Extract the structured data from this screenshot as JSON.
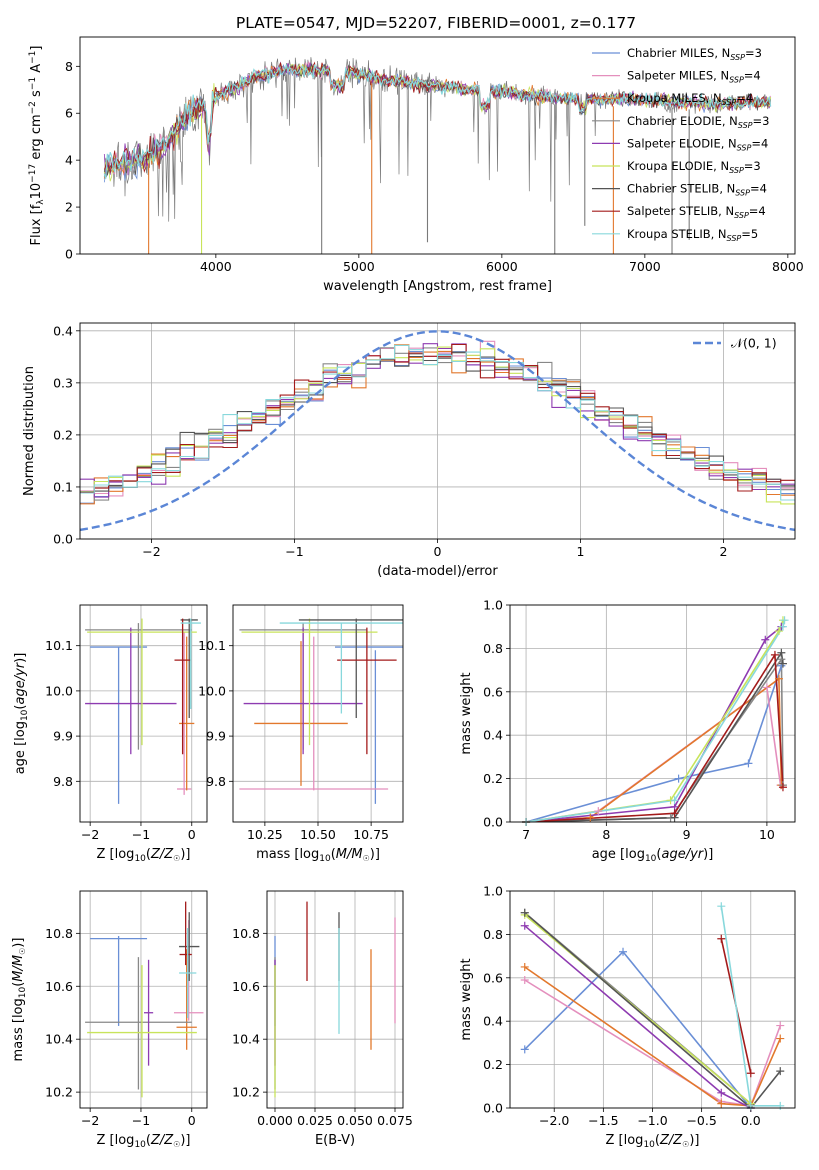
{
  "figure_title": "PLATE=0547, MJD=52207, FIBERID=0001, z=0.177",
  "colors": {
    "chabrier_miles": "#6a8fd6",
    "salpeter_miles": "#e48fbd",
    "kroupa_miles": "#e2782d",
    "chabrier_elodie": "#888888",
    "salpeter_elodie": "#8e3bb1",
    "kroupa_elodie": "#c8e45b",
    "chabrier_stelib": "#555555",
    "salpeter_stelib": "#a31b1b",
    "kroupa_stelib": "#88d8dc",
    "normal_curve": "#5b86d6"
  },
  "legend_models": [
    {
      "key": "chabrier_miles",
      "name": "Chabrier MILES",
      "nssp": "3"
    },
    {
      "key": "salpeter_miles",
      "name": "Salpeter MILES",
      "nssp": "4"
    },
    {
      "key": "kroupa_miles",
      "name": "Kroupa MILES",
      "nssp": "4"
    },
    {
      "key": "chabrier_elodie",
      "name": "Chabrier ELODIE",
      "nssp": "3"
    },
    {
      "key": "salpeter_elodie",
      "name": "Salpeter ELODIE",
      "nssp": "4"
    },
    {
      "key": "kroupa_elodie",
      "name": "Kroupa ELODIE",
      "nssp": "3"
    },
    {
      "key": "chabrier_stelib",
      "name": "Chabrier STELIB",
      "nssp": "4"
    },
    {
      "key": "salpeter_stelib",
      "name": "Salpeter STELIB",
      "nssp": "4"
    },
    {
      "key": "kroupa_stelib",
      "name": "Kroupa STELIB",
      "nssp": "5"
    }
  ],
  "chart_data": [
    {
      "id": "spectrum",
      "type": "line",
      "xlabel": "wavelength [Angstrom, rest frame]",
      "ylabel": "Flux [f_λ 10^-17 erg cm^-2 s^-1 A^-1]",
      "xlim": [
        3050,
        8050
      ],
      "ylim": [
        0,
        9.25
      ],
      "xticks": [
        4000,
        5000,
        6000,
        7000,
        8000
      ],
      "yticks": [
        0,
        2,
        4,
        6,
        8
      ],
      "grid": false,
      "legend_position": "right",
      "wavelength_range": [
        3220,
        7880
      ],
      "continuum_knots": [
        [
          3220,
          3.7
        ],
        [
          3400,
          3.9
        ],
        [
          3550,
          4.2
        ],
        [
          3700,
          5.0
        ],
        [
          3800,
          5.9
        ],
        [
          3950,
          6.5
        ],
        [
          4100,
          7.0
        ],
        [
          4300,
          7.6
        ],
        [
          4500,
          7.9
        ],
        [
          4800,
          7.8
        ],
        [
          5000,
          7.7
        ],
        [
          5200,
          7.4
        ],
        [
          5500,
          7.2
        ],
        [
          5800,
          7.0
        ],
        [
          6000,
          6.9
        ],
        [
          6300,
          6.7
        ],
        [
          6600,
          6.6
        ],
        [
          6900,
          6.6
        ],
        [
          7200,
          6.5
        ],
        [
          7500,
          6.4
        ],
        [
          7880,
          6.5
        ]
      ],
      "dropouts": [
        {
          "x": 3530,
          "y": 0,
          "series": "kroupa_miles"
        },
        {
          "x": 3900,
          "y": 0,
          "series": "kroupa_elodie"
        },
        {
          "x": 4740,
          "y": 0,
          "series": "data"
        },
        {
          "x": 5090,
          "y": 0,
          "series": "kroupa_miles"
        },
        {
          "x": 5480,
          "y": 0.5,
          "series": "data"
        },
        {
          "x": 6370,
          "y": 0,
          "series": "data"
        },
        {
          "x": 6580,
          "y": 1.2,
          "series": "data"
        },
        {
          "x": 6780,
          "y": 0,
          "series": "kroupa_miles"
        },
        {
          "x": 7190,
          "y": 0,
          "series": "data"
        },
        {
          "x": 7310,
          "y": 0.6,
          "series": "data"
        }
      ]
    },
    {
      "id": "residuals",
      "type": "histogram",
      "xlabel": "(data-model)/error",
      "ylabel": "Normed distribution",
      "xlim": [
        -2.5,
        2.5
      ],
      "ylim": [
        0,
        0.415
      ],
      "xticks": [
        -2,
        -1,
        0,
        1,
        2
      ],
      "yticks": [
        0.0,
        0.1,
        0.2,
        0.3,
        0.4
      ],
      "grid": true,
      "legend_position": "top-right",
      "legend_label": "𝒩(0, 1)",
      "bin_width": 0.1,
      "curve": {
        "mu": 0,
        "sigma": 1
      }
    },
    {
      "id": "age_vs_Z",
      "type": "errorbar",
      "xlabel": "Z [log10(Z/Z☉)]",
      "ylabel": "age  [log10(age/yr)]",
      "xlim": [
        -2.2,
        0.3
      ],
      "ylim": [
        9.71,
        10.19
      ],
      "xticks": [
        -2,
        -1,
        0
      ],
      "yticks": [
        9.8,
        9.9,
        10.0,
        10.1
      ],
      "grid": true,
      "points": [
        {
          "series": "chabrier_miles",
          "x": -1.44,
          "xerr": 0.56,
          "y": 9.923,
          "yerr": 0.173,
          "y_hbar": 10.097
        },
        {
          "series": "salpeter_miles",
          "x": -0.15,
          "xerr": 0.14,
          "y": 9.95,
          "yerr": 0.18,
          "y_hbar": 9.783
        },
        {
          "series": "kroupa_miles",
          "x": -0.1,
          "xerr": 0.15,
          "y": 9.95,
          "yerr": 0.17,
          "y_hbar": 9.928
        },
        {
          "series": "chabrier_elodie",
          "x": -1.05,
          "xerr": 1.05,
          "y": 10.01,
          "yerr": 0.14,
          "y_hbar": 10.135
        },
        {
          "series": "salpeter_elodie",
          "x": -1.2,
          "xerr": 0.9,
          "y": 10.0,
          "yerr": 0.14,
          "y_hbar": 9.972
        },
        {
          "series": "kroupa_elodie",
          "x": -0.98,
          "xerr": 1.08,
          "y": 10.02,
          "yerr": 0.14,
          "y_hbar": 10.13
        },
        {
          "series": "chabrier_stelib",
          "x": -0.05,
          "xerr": 0.17,
          "y": 10.05,
          "yerr": 0.11,
          "y_hbar": 10.157
        },
        {
          "series": "salpeter_stelib",
          "x": -0.18,
          "xerr": 0.16,
          "y": 10.01,
          "yerr": 0.15,
          "y_hbar": 10.068
        },
        {
          "series": "kroupa_stelib",
          "x": -0.02,
          "xerr": 0.2,
          "y": 10.06,
          "yerr": 0.1,
          "y_hbar": 10.15
        }
      ]
    },
    {
      "id": "age_vs_mass",
      "type": "errorbar",
      "xlabel": "mass [log10(M/M☉)]",
      "ylabel": "",
      "xlim": [
        10.1,
        10.9
      ],
      "ylim": [
        9.71,
        10.19
      ],
      "xticks": [
        10.25,
        10.5,
        10.75
      ],
      "yticks": [
        9.8,
        9.9,
        10.0,
        10.1
      ],
      "grid": true,
      "points": [
        {
          "series": "chabrier_miles",
          "x": 10.77,
          "xerr": 0.19,
          "y": 9.92,
          "yerr": 0.17,
          "y_hbar": 10.097
        },
        {
          "series": "salpeter_miles",
          "x": 10.48,
          "xerr": 0.35,
          "y": 9.95,
          "yerr": 0.17,
          "y_hbar": 9.783
        },
        {
          "series": "kroupa_miles",
          "x": 10.42,
          "xerr": 0.22,
          "y": 9.95,
          "yerr": 0.16,
          "y_hbar": 9.928
        },
        {
          "series": "chabrier_elodie",
          "x": 10.43,
          "xerr": 0.3,
          "y": 10.01,
          "yerr": 0.14,
          "y_hbar": 10.135
        },
        {
          "series": "salpeter_elodie",
          "x": 10.43,
          "xerr": 0.28,
          "y": 10.0,
          "yerr": 0.14,
          "y_hbar": 9.972
        },
        {
          "series": "kroupa_elodie",
          "x": 10.46,
          "xerr": 0.32,
          "y": 10.02,
          "yerr": 0.14,
          "y_hbar": 10.13
        },
        {
          "series": "chabrier_stelib",
          "x": 10.68,
          "xerr": 0.27,
          "y": 10.05,
          "yerr": 0.11,
          "y_hbar": 10.157
        },
        {
          "series": "salpeter_stelib",
          "x": 10.73,
          "xerr": 0.14,
          "y": 10.0,
          "yerr": 0.14,
          "y_hbar": 10.068
        },
        {
          "series": "kroupa_stelib",
          "x": 10.61,
          "xerr": 0.29,
          "y": 10.05,
          "yerr": 0.1,
          "y_hbar": 10.15
        }
      ]
    },
    {
      "id": "weight_vs_age",
      "type": "line",
      "xlabel": "age  [log10(age/yr)]",
      "ylabel": "mass weight",
      "xlim": [
        6.8,
        10.35
      ],
      "ylim": [
        0,
        1
      ],
      "xticks": [
        7,
        8,
        9,
        10
      ],
      "yticks": [
        0.0,
        0.2,
        0.4,
        0.6,
        0.8,
        1.0
      ],
      "grid": true,
      "series": [
        {
          "key": "chabrier_miles",
          "x": [
            7.0,
            8.9,
            9.77,
            10.18
          ],
          "y": [
            0.0,
            0.2,
            0.27,
            0.72
          ]
        },
        {
          "key": "salpeter_miles",
          "x": [
            7.0,
            7.9,
            10.0,
            10.17
          ],
          "y": [
            0.0,
            0.05,
            0.62,
            0.17
          ]
        },
        {
          "key": "kroupa_miles",
          "x": [
            7.0,
            7.8,
            10.15,
            10.18
          ],
          "y": [
            0.0,
            0.02,
            0.66,
            0.17
          ]
        },
        {
          "key": "chabrier_elodie",
          "x": [
            7.0,
            8.8,
            10.18,
            10.2
          ],
          "y": [
            0.0,
            0.02,
            0.75,
            0.17
          ]
        },
        {
          "key": "salpeter_elodie",
          "x": [
            7.0,
            8.85,
            9.98,
            10.18
          ],
          "y": [
            0.0,
            0.07,
            0.84,
            0.9
          ]
        },
        {
          "key": "kroupa_elodie",
          "x": [
            7.0,
            8.8,
            10.15,
            10.2
          ],
          "y": [
            0.0,
            0.1,
            0.88,
            0.93
          ]
        },
        {
          "key": "chabrier_stelib",
          "x": [
            7.0,
            8.85,
            10.18,
            10.2
          ],
          "y": [
            0.0,
            0.02,
            0.78,
            0.73
          ]
        },
        {
          "key": "salpeter_stelib",
          "x": [
            7.0,
            8.85,
            10.1,
            10.2
          ],
          "y": [
            0.0,
            0.04,
            0.77,
            0.16
          ]
        },
        {
          "key": "kroupa_stelib",
          "x": [
            7.0,
            8.85,
            10.2,
            10.22
          ],
          "y": [
            0.0,
            0.1,
            0.9,
            0.93
          ]
        }
      ]
    },
    {
      "id": "mass_vs_Z",
      "type": "errorbar",
      "xlabel": "Z [log10(Z/Z☉)]",
      "ylabel": "mass [log10(M/M☉)]",
      "xlim": [
        -2.2,
        0.3
      ],
      "ylim": [
        10.14,
        10.96
      ],
      "xticks": [
        -2,
        -1,
        0
      ],
      "yticks": [
        10.2,
        10.4,
        10.6,
        10.8
      ],
      "grid": true,
      "points": [
        {
          "series": "chabrier_miles",
          "x": -1.44,
          "xerr": 0.56,
          "y": 10.62,
          "yerr": 0.17,
          "y_hbar": 10.78
        },
        {
          "series": "salpeter_miles",
          "x": -0.06,
          "xerr": 0.29,
          "y": 10.66,
          "yerr": 0.19,
          "y_hbar": 10.5
        },
        {
          "series": "kroupa_miles",
          "x": -0.1,
          "xerr": 0.2,
          "y": 10.55,
          "yerr": 0.19,
          "y_hbar": 10.445
        },
        {
          "series": "chabrier_elodie",
          "x": -1.05,
          "xerr": 1.05,
          "y": 10.46,
          "yerr": 0.25,
          "y_hbar": 10.464
        },
        {
          "series": "salpeter_elodie",
          "x": -0.85,
          "xerr": 0.09,
          "y": 10.5,
          "yerr": 0.2,
          "y_hbar": 10.5
        },
        {
          "series": "kroupa_elodie",
          "x": -0.98,
          "xerr": 1.08,
          "y": 10.43,
          "yerr": 0.25,
          "y_hbar": 10.425
        },
        {
          "series": "chabrier_stelib",
          "x": -0.05,
          "xerr": 0.2,
          "y": 10.75,
          "yerr": 0.13,
          "y_hbar": 10.75
        },
        {
          "series": "salpeter_stelib",
          "x": -0.12,
          "xerr": 0.12,
          "y": 10.8,
          "yerr": 0.12,
          "y_hbar": 10.72
        },
        {
          "series": "kroupa_stelib",
          "x": -0.08,
          "xerr": 0.17,
          "y": 10.65,
          "yerr": 0.17,
          "y_hbar": 10.65
        }
      ]
    },
    {
      "id": "mass_vs_ebv",
      "type": "errorbar",
      "xlabel": "E(B-V)",
      "ylabel": "",
      "xlim": [
        -0.005,
        0.08
      ],
      "ylim": [
        10.14,
        10.96
      ],
      "xticks": [
        0.0,
        0.025,
        0.05,
        0.075
      ],
      "yticks": [
        10.2,
        10.4,
        10.6,
        10.8
      ],
      "grid": true,
      "points": [
        {
          "series": "chabrier_miles",
          "x": 0.0,
          "y": 10.62,
          "yerr": 0.17
        },
        {
          "series": "salpeter_miles",
          "x": 0.075,
          "y": 10.66,
          "yerr": 0.2
        },
        {
          "series": "kroupa_miles",
          "x": 0.06,
          "y": 10.55,
          "yerr": 0.19
        },
        {
          "series": "chabrier_elodie",
          "x": 0.0,
          "y": 10.46,
          "yerr": 0.25
        },
        {
          "series": "salpeter_elodie",
          "x": 0.0,
          "y": 10.5,
          "yerr": 0.2
        },
        {
          "series": "kroupa_elodie",
          "x": 0.0,
          "y": 10.43,
          "yerr": 0.25
        },
        {
          "series": "chabrier_stelib",
          "x": 0.04,
          "y": 10.75,
          "yerr": 0.13
        },
        {
          "series": "salpeter_stelib",
          "x": 0.02,
          "y": 10.77,
          "yerr": 0.15
        },
        {
          "series": "kroupa_stelib",
          "x": 0.04,
          "y": 10.62,
          "yerr": 0.2
        }
      ]
    },
    {
      "id": "weight_vs_Z",
      "type": "line",
      "xlabel": "Z [log10(Z/Z☉)]",
      "ylabel": "mass weight",
      "xlim": [
        -2.45,
        0.45
      ],
      "ylim": [
        0,
        1
      ],
      "xticks": [
        -2.0,
        -1.5,
        -1.0,
        -0.5,
        0.0
      ],
      "yticks": [
        0.0,
        0.2,
        0.4,
        0.6,
        0.8,
        1.0
      ],
      "grid": true,
      "series": [
        {
          "key": "chabrier_miles",
          "x": [
            -2.3,
            -1.3,
            0.0
          ],
          "y": [
            0.27,
            0.72,
            0.0
          ]
        },
        {
          "key": "salpeter_miles",
          "x": [
            -2.3,
            -0.3,
            0.0,
            0.3
          ],
          "y": [
            0.59,
            0.03,
            0.01,
            0.38
          ]
        },
        {
          "key": "kroupa_miles",
          "x": [
            -2.3,
            -0.3,
            0.0,
            0.3
          ],
          "y": [
            0.65,
            0.02,
            0.01,
            0.32
          ]
        },
        {
          "key": "chabrier_elodie",
          "x": [
            -2.3,
            0.0
          ],
          "y": [
            0.9,
            0.02
          ]
        },
        {
          "key": "salpeter_elodie",
          "x": [
            -2.3,
            -0.3,
            0.0
          ],
          "y": [
            0.84,
            0.07,
            0.0
          ]
        },
        {
          "key": "kroupa_elodie",
          "x": [
            -2.3,
            0.0
          ],
          "y": [
            0.89,
            0.02
          ]
        },
        {
          "key": "chabrier_stelib",
          "x": [
            -2.3,
            0.0,
            0.3
          ],
          "y": [
            0.9,
            0.0,
            0.17
          ]
        },
        {
          "key": "salpeter_stelib",
          "x": [
            -0.3,
            0.0
          ],
          "y": [
            0.78,
            0.16
          ]
        },
        {
          "key": "kroupa_stelib",
          "x": [
            -0.3,
            0.0,
            0.3
          ],
          "y": [
            0.93,
            0.01,
            0.01
          ]
        }
      ]
    }
  ]
}
